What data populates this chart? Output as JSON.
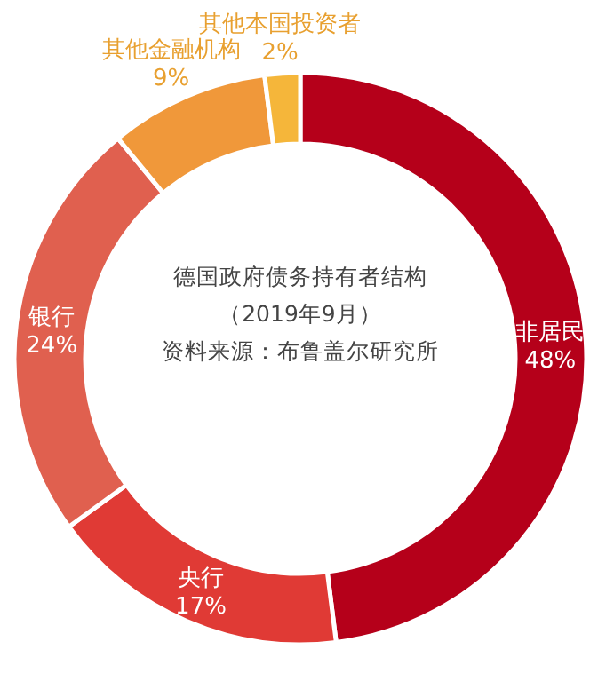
{
  "chart_data": {
    "type": "donut",
    "title": "德国政府债务持有者结构",
    "subtitle": "（2019年9月）",
    "annotations": [
      "资料来源：布鲁盖尔研究所"
    ],
    "categories": [
      "非居民",
      "央行",
      "银行",
      "其他金融机构",
      "其他本国投资者"
    ],
    "values": [
      48,
      17,
      24,
      9,
      2
    ],
    "value_labels": [
      "48%",
      "17%",
      "24%",
      "9%",
      "2%"
    ],
    "colors": [
      "#b5001a",
      "#e03a35",
      "#e0604f",
      "#f0983a",
      "#f5b63a"
    ]
  }
}
